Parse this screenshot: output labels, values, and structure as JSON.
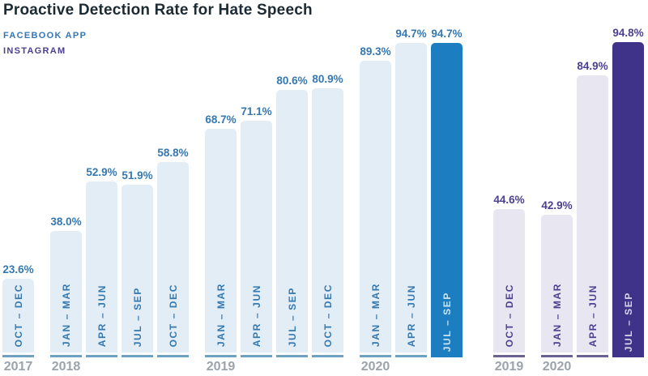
{
  "colors": {
    "background": "#ffffff",
    "title": "#1c2b33",
    "year_label": "#9ba3ab"
  },
  "chart_data": {
    "type": "bar",
    "title": "Proactive Detection Rate for Hate Speech",
    "xlabel": "",
    "ylabel": "",
    "unit": "%",
    "ylim": [
      0,
      100
    ],
    "grid": false,
    "legend_position": "top-left",
    "legend": [
      {
        "label": "FACEBOOK APP",
        "color": "#3577b4"
      },
      {
        "label": "INSTAGRAM",
        "color": "#4b3f8f"
      }
    ],
    "series": [
      {
        "name": "FACEBOOK APP",
        "id": "facebook-app",
        "colors": {
          "bar": "#e2edf6",
          "bar_highlight": "#1c7dc0",
          "label": "#3578b0",
          "underline": "#6fa1c2",
          "highlight_text": "#cbe5f4"
        },
        "bars": [
          {
            "year": "2017",
            "year_start": true,
            "period": "OCT – DEC",
            "value": 23.6,
            "value_label": "23.6%",
            "highlight": false
          },
          {
            "year": "2018",
            "year_start": true,
            "period": "JAN – MAR",
            "value": 38.0,
            "value_label": "38.0%",
            "highlight": false
          },
          {
            "period": "APR – JUN",
            "value": 52.9,
            "value_label": "52.9%",
            "highlight": false
          },
          {
            "period": "JUL – SEP",
            "value": 51.9,
            "value_label": "51.9%",
            "highlight": false
          },
          {
            "period": "OCT – DEC",
            "value": 58.8,
            "value_label": "58.8%",
            "highlight": false
          },
          {
            "year": "2019",
            "year_start": true,
            "period": "JAN – MAR",
            "value": 68.7,
            "value_label": "68.7%",
            "highlight": false
          },
          {
            "period": "APR – JUN",
            "value": 71.1,
            "value_label": "71.1%",
            "highlight": false
          },
          {
            "period": "JUL – SEP",
            "value": 80.6,
            "value_label": "80.6%",
            "highlight": false
          },
          {
            "period": "OCT – DEC",
            "value": 80.9,
            "value_label": "80.9%",
            "highlight": false
          },
          {
            "year": "2020",
            "year_start": true,
            "period": "JAN – MAR",
            "value": 89.3,
            "value_label": "89.3%",
            "highlight": false
          },
          {
            "period": "APR – JUN",
            "value": 94.7,
            "value_label": "94.7%",
            "highlight": false
          },
          {
            "period": "JUL – SEP",
            "value": 94.7,
            "value_label": "94.7%",
            "highlight": true
          }
        ]
      },
      {
        "name": "INSTAGRAM",
        "id": "instagram",
        "colors": {
          "bar": "#e8e6f1",
          "bar_highlight": "#3f3289",
          "label": "#4c3f90",
          "underline": "#6c6193",
          "highlight_text": "#d9d5ec"
        },
        "bars": [
          {
            "year": "2019",
            "year_start": true,
            "period": "OCT – DEC",
            "value": 44.6,
            "value_label": "44.6%",
            "highlight": false
          },
          {
            "year": "2020",
            "year_start": true,
            "period": "JAN – MAR",
            "value": 42.9,
            "value_label": "42.9%",
            "highlight": false
          },
          {
            "period": "APR – JUN",
            "value": 84.9,
            "value_label": "84.9%",
            "highlight": false
          },
          {
            "period": "JUL – SEP",
            "value": 94.8,
            "value_label": "94.8%",
            "highlight": true
          }
        ]
      }
    ]
  }
}
